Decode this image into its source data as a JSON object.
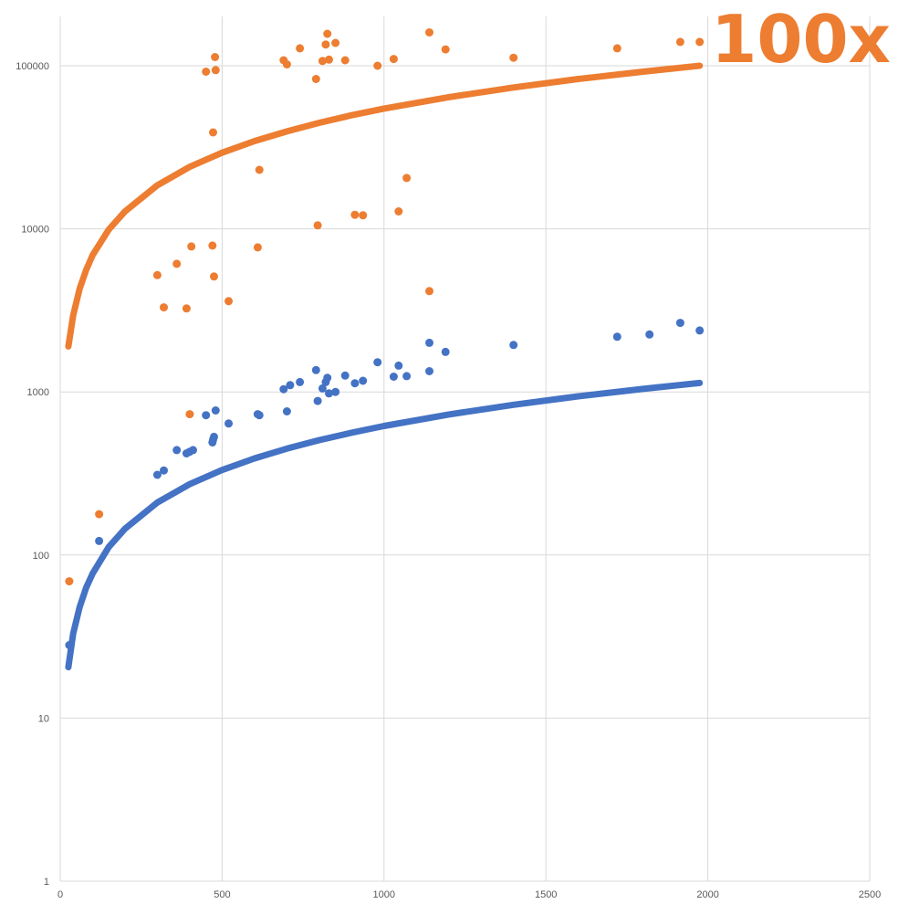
{
  "chart_data": {
    "type": "scatter",
    "title": "",
    "xlabel": "",
    "ylabel": "",
    "xlim": [
      0,
      2500
    ],
    "ylim": [
      1,
      200000
    ],
    "y_scale": "log",
    "grid": true,
    "legend": "none",
    "x_ticks": [
      0,
      500,
      1000,
      1500,
      2000,
      2500
    ],
    "x_tick_labels": [
      "0",
      "500",
      "1000",
      "1500",
      "2000",
      "2500"
    ],
    "y_ticks": [
      1,
      10,
      100,
      1000,
      10000,
      100000
    ],
    "y_tick_labels": [
      "1",
      "10",
      "100",
      "1000",
      "10000",
      "100000"
    ],
    "annotation": {
      "text": "100x",
      "color": "#ED7D31"
    },
    "colors": {
      "orange": "#ED7D31",
      "blue": "#4472C4",
      "grid": "#D9D9D9",
      "tick_text": "#595959"
    },
    "trendlines": [
      {
        "color": "#ED7D31",
        "x": [
          25,
          40,
          60,
          80,
          100,
          150,
          200,
          300,
          400,
          500,
          600,
          700,
          800,
          900,
          1000,
          1200,
          1400,
          1600,
          1800,
          1975
        ],
        "y": [
          1900,
          2950,
          4300,
          5600,
          6900,
          9900,
          12800,
          18500,
          24000,
          29300,
          34500,
          39600,
          44700,
          49700,
          54600,
          64200,
          73600,
          82900,
          92000,
          100000
        ]
      },
      {
        "color": "#4472C4",
        "x": [
          25,
          40,
          60,
          80,
          100,
          150,
          200,
          300,
          400,
          500,
          600,
          700,
          800,
          900,
          1000,
          1200,
          1400,
          1600,
          1800,
          1975
        ],
        "y": [
          20.5,
          33,
          48,
          63,
          77,
          112,
          145,
          210,
          272,
          332,
          391,
          449,
          506,
          562,
          618,
          727,
          834,
          940,
          1044,
          1135
        ]
      }
    ],
    "series": [
      {
        "color": "#ED7D31",
        "points": [
          [
            28,
            69
          ],
          [
            120,
            178
          ],
          [
            300,
            5200
          ],
          [
            320,
            3300
          ],
          [
            360,
            6100
          ],
          [
            390,
            3250
          ],
          [
            400,
            730
          ],
          [
            405,
            7800
          ],
          [
            450,
            92000
          ],
          [
            470,
            7900
          ],
          [
            472,
            39000
          ],
          [
            475,
            5100
          ],
          [
            478,
            113000
          ],
          [
            480,
            94000
          ],
          [
            520,
            3600
          ],
          [
            610,
            7700
          ],
          [
            615,
            23000
          ],
          [
            690,
            108000
          ],
          [
            700,
            102000
          ],
          [
            740,
            128000
          ],
          [
            790,
            83000
          ],
          [
            795,
            10500
          ],
          [
            810,
            107000
          ],
          [
            820,
            135000
          ],
          [
            825,
            157000
          ],
          [
            830,
            109000
          ],
          [
            850,
            138000
          ],
          [
            880,
            108000
          ],
          [
            910,
            12200
          ],
          [
            935,
            12100
          ],
          [
            980,
            100000
          ],
          [
            1030,
            110000
          ],
          [
            1045,
            12800
          ],
          [
            1070,
            20500
          ],
          [
            1140,
            160000
          ],
          [
            1140,
            4150
          ],
          [
            1190,
            126000
          ],
          [
            1400,
            112000
          ],
          [
            1720,
            128000
          ],
          [
            1915,
            140000
          ],
          [
            1975,
            140000
          ]
        ]
      },
      {
        "color": "#4472C4",
        "points": [
          [
            28,
            28
          ],
          [
            120,
            122
          ],
          [
            300,
            310
          ],
          [
            320,
            330
          ],
          [
            360,
            440
          ],
          [
            390,
            420
          ],
          [
            400,
            430
          ],
          [
            410,
            440
          ],
          [
            450,
            720
          ],
          [
            470,
            490
          ],
          [
            472,
            510
          ],
          [
            475,
            530
          ],
          [
            480,
            770
          ],
          [
            520,
            640
          ],
          [
            610,
            730
          ],
          [
            615,
            720
          ],
          [
            690,
            1040
          ],
          [
            700,
            760
          ],
          [
            710,
            1100
          ],
          [
            740,
            1150
          ],
          [
            790,
            1360
          ],
          [
            795,
            880
          ],
          [
            810,
            1050
          ],
          [
            820,
            1150
          ],
          [
            825,
            1220
          ],
          [
            830,
            980
          ],
          [
            850,
            1000
          ],
          [
            880,
            1260
          ],
          [
            910,
            1130
          ],
          [
            935,
            1170
          ],
          [
            980,
            1520
          ],
          [
            1030,
            1240
          ],
          [
            1045,
            1450
          ],
          [
            1070,
            1250
          ],
          [
            1140,
            1340
          ],
          [
            1140,
            2000
          ],
          [
            1190,
            1760
          ],
          [
            1400,
            1940
          ],
          [
            1720,
            2180
          ],
          [
            1820,
            2250
          ],
          [
            1915,
            2650
          ],
          [
            1975,
            2380
          ]
        ]
      }
    ]
  }
}
